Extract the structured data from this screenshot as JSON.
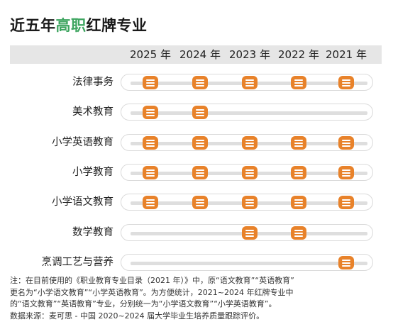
{
  "title_prefix": "近五年",
  "title_highlight": "高职",
  "title_suffix": "红牌专业",
  "chart_data": {
    "type": "table",
    "title": "近五年高职红牌专业",
    "years": [
      "2025 年",
      "2024 年",
      "2023 年",
      "2022 年",
      "2021 年"
    ],
    "rows": [
      {
        "label": "法律事务",
        "red": [
          1,
          1,
          1,
          1,
          1
        ]
      },
      {
        "label": "美术教育",
        "red": [
          1,
          1,
          0,
          0,
          0
        ]
      },
      {
        "label": "小学英语教育",
        "red": [
          1,
          1,
          1,
          1,
          1
        ]
      },
      {
        "label": "小学教育",
        "red": [
          1,
          1,
          1,
          1,
          1
        ]
      },
      {
        "label": "小学语文教育",
        "red": [
          1,
          1,
          1,
          1,
          1
        ]
      },
      {
        "label": "数学教育",
        "red": [
          0,
          0,
          1,
          1,
          0
        ]
      },
      {
        "label": "烹调工艺与营养",
        "red": [
          0,
          0,
          0,
          0,
          1
        ]
      }
    ],
    "marker_color": "#e8822a",
    "highlight_color": "#3ea560"
  },
  "notes": {
    "line1": "注：在目前使用的《职业教育专业目录（2021 年）》中，原“语文教育”“英语教育”",
    "line2": "更名为“小学语文教育”“小学英语教育”。为方便统计，2021~2024 年红牌专业中",
    "line3": "的“语文教育”“英语教育”专业，分别统一为“小学语文教育”“小学英语教育”。",
    "line4": "数据来源：麦可思 - 中国 2020~2024 届大学毕业生培养质量跟踪评价。"
  }
}
